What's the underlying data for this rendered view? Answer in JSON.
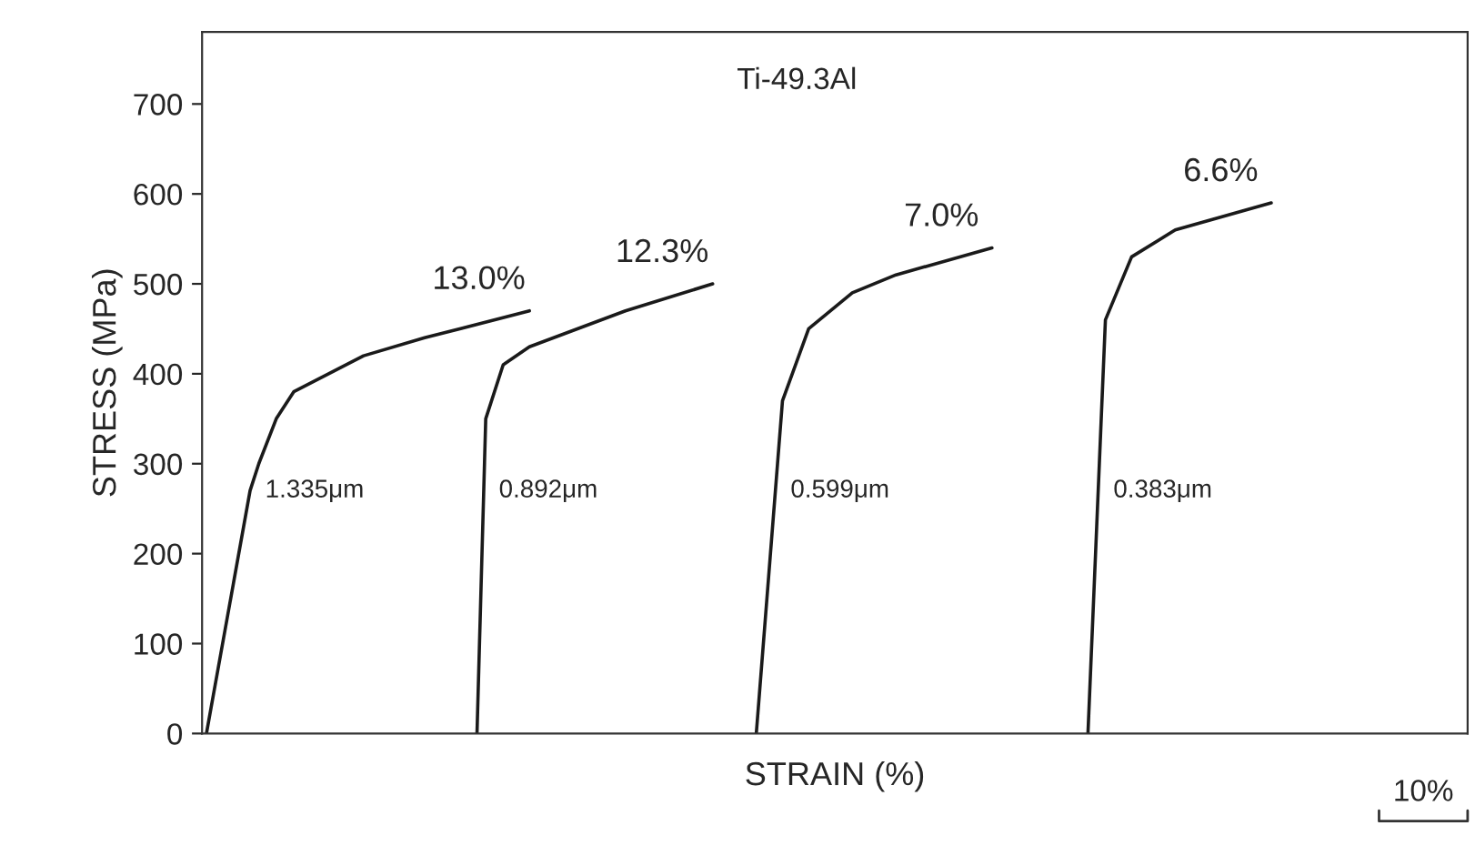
{
  "chart_data": {
    "type": "line",
    "xlabel": "STRAIN (%)",
    "ylabel": "STRESS (MPa)",
    "categories": [
      null,
      null,
      null,
      null,
      null,
      null,
      null,
      null,
      null,
      null,
      null,
      null,
      null,
      null,
      null,
      null,
      null,
      null,
      null,
      null,
      null,
      null,
      null,
      null,
      null,
      null,
      null,
      null,
      null,
      null,
      null,
      null,
      null,
      null,
      null,
      null,
      null,
      null,
      null,
      null,
      null,
      null,
      null,
      null,
      null,
      null,
      null,
      null,
      null,
      null,
      null,
      null,
      null,
      null,
      null,
      null,
      null,
      null,
      null,
      null,
      null,
      null,
      null,
      null,
      null,
      null,
      null,
      null,
      null,
      null,
      null,
      null,
      null,
      null,
      null,
      null,
      null,
      null,
      null,
      null,
      null,
      null,
      null,
      null,
      null,
      null,
      null,
      null,
      null,
      null,
      null,
      null,
      null,
      null,
      null,
      null,
      null,
      null,
      null,
      null,
      null,
      null,
      null,
      null,
      null,
      null,
      null,
      null,
      null,
      null,
      null,
      null,
      null,
      null,
      null,
      null,
      null,
      null,
      null,
      null,
      null,
      null,
      null,
      null,
      null,
      null,
      null,
      null,
      null,
      null,
      null,
      null,
      null,
      null,
      null,
      null,
      null,
      null,
      null,
      null,
      null,
      null,
      null,
      null,
      null
    ],
    "ylim": [
      0,
      780
    ],
    "yticks": [
      0,
      100,
      200,
      300,
      400,
      500,
      600,
      700
    ],
    "grid": false,
    "legend": false,
    "marker": "none",
    "line_style": "solid",
    "series": [
      {
        "name": "1.335μm",
        "color": "#1a1a1a",
        "values": [
          0,
          null,
          null,
          null,
          null,
          270,
          300,
          null,
          350,
          null,
          380,
          null,
          null,
          null,
          400,
          null,
          null,
          null,
          420,
          null,
          null,
          null,
          null,
          null,
          null,
          440,
          null,
          null,
          null,
          null,
          null,
          null,
          null,
          null,
          null,
          null,
          null,
          470,
          null,
          null,
          null,
          null,
          null,
          null,
          null,
          null,
          null,
          null,
          null,
          null,
          null,
          null,
          null,
          null,
          null,
          null,
          null,
          null,
          null,
          null,
          null,
          null,
          null,
          null,
          null,
          null,
          null,
          null,
          null,
          null,
          null,
          null,
          null,
          null,
          null,
          null,
          null,
          null,
          null,
          null,
          null,
          null,
          null,
          null,
          null,
          null,
          null,
          null,
          null,
          null,
          null,
          null,
          null,
          null,
          null,
          null,
          null,
          null,
          null,
          null,
          null,
          null,
          null,
          null,
          null,
          null,
          null,
          null,
          null,
          null,
          null,
          null,
          null,
          null,
          null,
          null,
          null,
          null,
          null,
          null,
          null,
          null,
          null,
          null,
          null,
          null,
          null,
          null,
          null,
          null,
          null,
          null,
          null,
          null,
          null,
          null,
          null,
          null,
          null,
          null,
          null,
          null,
          null,
          null,
          null
        ]
      },
      {
        "name": "0.892μm",
        "color": "#1a1a1a",
        "values": [
          null,
          null,
          null,
          null,
          null,
          null,
          null,
          null,
          null,
          null,
          null,
          null,
          null,
          null,
          null,
          null,
          null,
          null,
          null,
          null,
          null,
          null,
          null,
          null,
          null,
          null,
          null,
          null,
          null,
          null,
          null,
          0,
          350,
          null,
          410,
          null,
          null,
          430,
          null,
          null,
          null,
          null,
          null,
          null,
          null,
          null,
          null,
          null,
          470,
          null,
          null,
          null,
          null,
          null,
          null,
          null,
          null,
          null,
          500,
          null,
          null,
          null,
          null,
          null,
          null,
          null,
          null,
          null,
          null,
          null,
          null,
          null,
          null,
          null,
          null,
          null,
          null,
          null,
          null,
          null,
          null,
          null,
          null,
          null,
          null,
          null,
          null,
          null,
          null,
          null,
          null,
          null,
          null,
          null,
          null,
          null,
          null,
          null,
          null,
          null,
          null,
          null,
          null,
          null,
          null,
          null,
          null,
          null,
          null,
          null,
          null,
          null,
          null,
          null,
          null,
          null,
          null,
          null,
          null,
          null,
          null,
          null,
          null,
          null,
          null,
          null,
          null,
          null,
          null,
          null,
          null,
          null,
          null,
          null,
          null,
          null,
          null,
          null,
          null,
          null,
          null,
          null,
          null,
          null,
          null
        ]
      },
      {
        "name": "0.599μm",
        "color": "#1a1a1a",
        "values": [
          null,
          null,
          null,
          null,
          null,
          null,
          null,
          null,
          null,
          null,
          null,
          null,
          null,
          null,
          null,
          null,
          null,
          null,
          null,
          null,
          null,
          null,
          null,
          null,
          null,
          null,
          null,
          null,
          null,
          null,
          null,
          null,
          null,
          null,
          null,
          null,
          null,
          null,
          null,
          null,
          null,
          null,
          null,
          null,
          null,
          null,
          null,
          null,
          null,
          null,
          null,
          null,
          null,
          null,
          null,
          null,
          null,
          null,
          null,
          null,
          null,
          null,
          null,
          0,
          null,
          null,
          370,
          null,
          null,
          450,
          null,
          null,
          null,
          null,
          490,
          null,
          null,
          null,
          null,
          510,
          null,
          null,
          null,
          null,
          null,
          null,
          null,
          null,
          null,
          null,
          540,
          null,
          null,
          null,
          null,
          null,
          null,
          null,
          null,
          null,
          null,
          null,
          null,
          null,
          null,
          null,
          null,
          null,
          null,
          null,
          null,
          null,
          null,
          null,
          null,
          null,
          null,
          null,
          null,
          null,
          null,
          null,
          null,
          null,
          null,
          null,
          null,
          null,
          null,
          null,
          null,
          null,
          null,
          null,
          null,
          null,
          null,
          null,
          null,
          null,
          null,
          null,
          null,
          null,
          null
        ]
      },
      {
        "name": "0.383μm",
        "color": "#1a1a1a",
        "values": [
          null,
          null,
          null,
          null,
          null,
          null,
          null,
          null,
          null,
          null,
          null,
          null,
          null,
          null,
          null,
          null,
          null,
          null,
          null,
          null,
          null,
          null,
          null,
          null,
          null,
          null,
          null,
          null,
          null,
          null,
          null,
          null,
          null,
          null,
          null,
          null,
          null,
          null,
          null,
          null,
          null,
          null,
          null,
          null,
          null,
          null,
          null,
          null,
          null,
          null,
          null,
          null,
          null,
          null,
          null,
          null,
          null,
          null,
          null,
          null,
          null,
          null,
          null,
          null,
          null,
          null,
          null,
          null,
          null,
          null,
          null,
          null,
          null,
          null,
          null,
          null,
          null,
          null,
          null,
          null,
          null,
          null,
          null,
          null,
          null,
          null,
          null,
          null,
          null,
          null,
          null,
          null,
          null,
          null,
          null,
          null,
          null,
          null,
          null,
          null,
          null,
          0,
          null,
          460,
          null,
          null,
          530,
          null,
          null,
          null,
          null,
          560,
          null,
          null,
          null,
          null,
          null,
          null,
          null,
          null,
          null,
          null,
          590,
          null,
          null,
          null,
          null,
          null,
          null,
          null,
          null,
          null,
          null,
          null,
          null,
          null,
          null,
          null,
          null,
          null,
          null,
          null,
          null,
          null,
          null
        ]
      }
    ],
    "annotations": [
      "Ti-49.3Al",
      "10%",
      "13.0%",
      "12.3%",
      "7.0%",
      "6.6%"
    ]
  }
}
